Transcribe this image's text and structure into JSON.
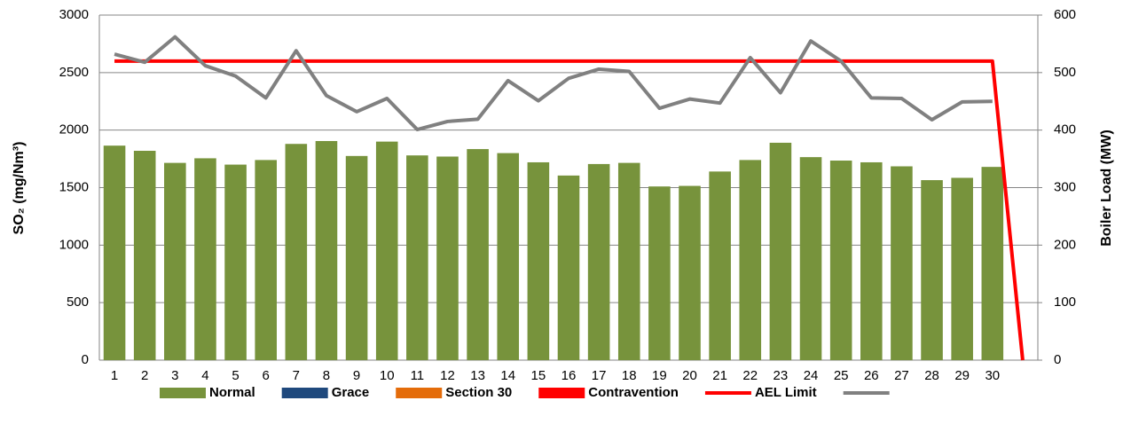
{
  "chart_data": {
    "type": "bar",
    "y_label": "SO₂  (mg/Nm³)",
    "y2_label": "Boiler Load (MW)",
    "categories": [
      "1",
      "2",
      "3",
      "4",
      "5",
      "6",
      "7",
      "8",
      "9",
      "10",
      "11",
      "12",
      "13",
      "14",
      "15",
      "16",
      "17",
      "18",
      "19",
      "20",
      "21",
      "22",
      "23",
      "24",
      "25",
      "26",
      "27",
      "28",
      "29",
      "30",
      null
    ],
    "ylim": [
      0,
      3000
    ],
    "yticks": [
      0,
      500,
      1000,
      1500,
      2000,
      2500,
      3000
    ],
    "y2lim": [
      0,
      600
    ],
    "y2ticks": [
      0,
      100,
      200,
      300,
      400,
      500,
      600
    ],
    "grid": true,
    "legend": "bottom",
    "series": [
      {
        "name": "Normal",
        "type": "bar",
        "color": "#77933c",
        "values": [
          1865,
          1820,
          1715,
          1755,
          1700,
          1740,
          1880,
          1905,
          1775,
          1900,
          1780,
          1770,
          1835,
          1800,
          1720,
          1605,
          1705,
          1715,
          1510,
          1515,
          1640,
          1740,
          1890,
          1765,
          1735,
          1720,
          1685,
          1565,
          1585,
          1680,
          null
        ]
      },
      {
        "name": "Grace",
        "type": "bar",
        "color": "#1f497d",
        "values": [
          null,
          null,
          null,
          null,
          null,
          null,
          null,
          null,
          null,
          null,
          null,
          null,
          null,
          null,
          null,
          null,
          null,
          null,
          null,
          null,
          null,
          null,
          null,
          null,
          null,
          null,
          null,
          null,
          null,
          null,
          null
        ]
      },
      {
        "name": "Section 30",
        "type": "bar",
        "color": "#e46c0a",
        "values": [
          null,
          null,
          null,
          null,
          null,
          null,
          null,
          null,
          null,
          null,
          null,
          null,
          null,
          null,
          null,
          null,
          null,
          null,
          null,
          null,
          null,
          null,
          null,
          null,
          null,
          null,
          null,
          null,
          null,
          null,
          null
        ]
      },
      {
        "name": "Contravention",
        "type": "bar",
        "color": "#ff0000",
        "values": [
          null,
          null,
          null,
          null,
          null,
          null,
          null,
          null,
          null,
          null,
          null,
          null,
          null,
          null,
          null,
          null,
          null,
          null,
          null,
          null,
          null,
          null,
          null,
          null,
          null,
          null,
          null,
          null,
          null,
          null,
          null
        ]
      },
      {
        "name": "AEL Limit",
        "type": "line",
        "color": "#ff0000",
        "values": [
          2600,
          2600,
          2600,
          2600,
          2600,
          2600,
          2600,
          2600,
          2600,
          2600,
          2600,
          2600,
          2600,
          2600,
          2600,
          2600,
          2600,
          2600,
          2600,
          2600,
          2600,
          2600,
          2600,
          2600,
          2600,
          2600,
          2600,
          2600,
          2600,
          2600,
          0
        ]
      },
      {
        "type": "line",
        "color": "#808080",
        "axis": "y2",
        "values": [
          532,
          518,
          562,
          512,
          494,
          456,
          538,
          460,
          432,
          455,
          401,
          415,
          419,
          486,
          451,
          490,
          506,
          502,
          438,
          454,
          447,
          526,
          465,
          555,
          520,
          456,
          455,
          418,
          449,
          450,
          null
        ]
      }
    ]
  }
}
